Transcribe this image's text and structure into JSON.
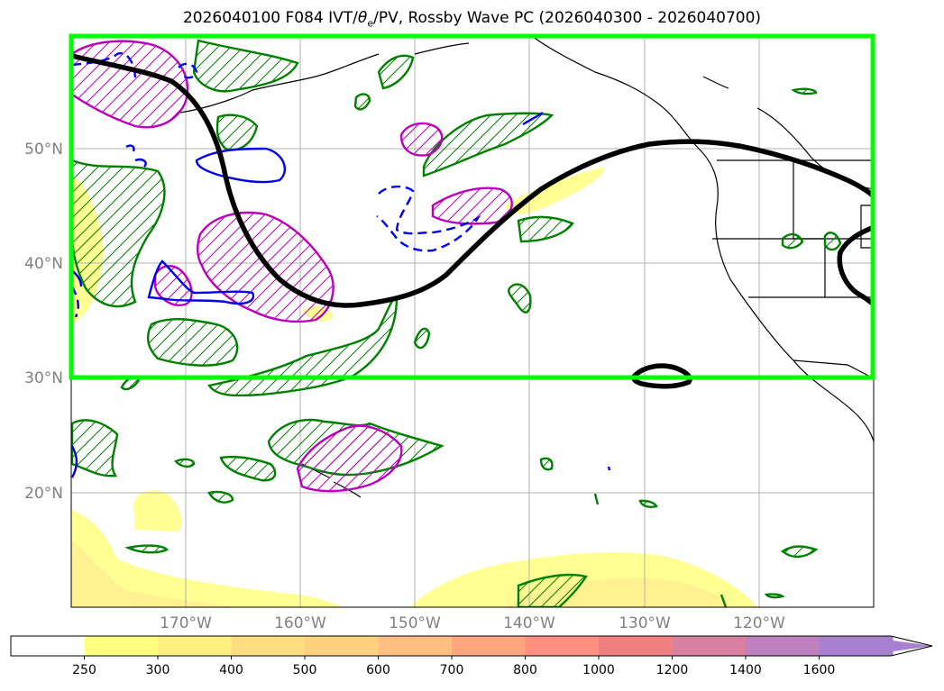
{
  "title": "2026040100 F084 IVT/θe/PV, Rossby Wave PC (2026040300 - 2026040700)",
  "title_parts": {
    "pre": "2026040100 F084 IVT/",
    "theta": "θ",
    "sub": "e",
    "post": "/PV, Rossby Wave PC (2026040300 - 2026040700)"
  },
  "map": {
    "lon_range": [
      -180,
      -110
    ],
    "lat_range": [
      10,
      60
    ],
    "lat_labels": [
      {
        "lat": 50,
        "text": "50°N"
      },
      {
        "lat": 40,
        "text": "40°N"
      },
      {
        "lat": 30,
        "text": "30°N"
      },
      {
        "lat": 20,
        "text": "20°N"
      }
    ],
    "lon_labels": [
      {
        "lon": -170,
        "text": "170°W"
      },
      {
        "lon": -160,
        "text": "160°W"
      },
      {
        "lon": -150,
        "text": "150°W"
      },
      {
        "lon": -140,
        "text": "140°W"
      },
      {
        "lon": -130,
        "text": "130°W"
      },
      {
        "lon": -120,
        "text": "120°W"
      }
    ],
    "highlight_box": {
      "lon": [
        -180,
        -110
      ],
      "lat": [
        30,
        60
      ],
      "color": "#00ff00"
    },
    "colors": {
      "waveguide": "#000000",
      "green_contour": "#008000",
      "magenta_contour": "#bb00bb",
      "blue_contour": "#0000ee",
      "grid": "#b0b0b0",
      "coast": "#000000"
    }
  },
  "colorbar": {
    "ticks": [
      "250",
      "300",
      "400",
      "500",
      "600",
      "700",
      "800",
      "1000",
      "1200",
      "1400",
      "1600"
    ],
    "colors": [
      "#ffff80",
      "#ffee80",
      "#ffdd80",
      "#ffd080",
      "#ffbf80",
      "#ffa680",
      "#ff9080",
      "#f08080",
      "#d880a0",
      "#c080c0",
      "#a880d0"
    ],
    "underflow_color": "#ffffff"
  }
}
